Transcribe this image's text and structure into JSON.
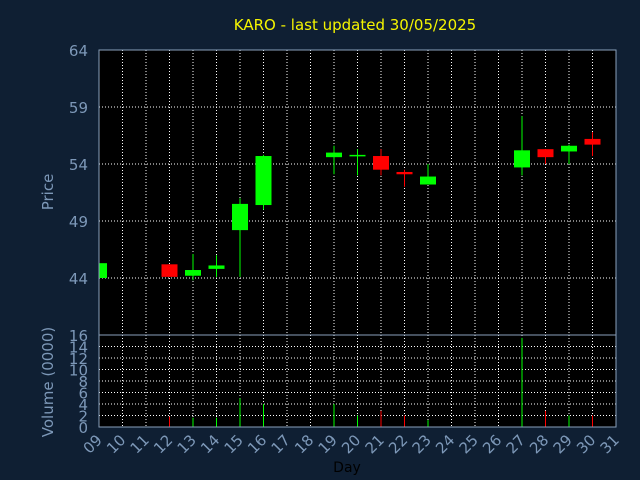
{
  "chart_data": {
    "type": "candlestick",
    "title": "KARO - last updated 30/05/2025",
    "xlabel": "Day",
    "price_panel": {
      "ylabel": "Price",
      "ylim": [
        39,
        64
      ],
      "yticks": [
        44,
        49,
        54,
        59,
        64
      ]
    },
    "volume_panel": {
      "ylabel": "Volume (0000)",
      "ylim": [
        0,
        16
      ],
      "yticks": [
        0,
        2,
        4,
        6,
        8,
        10,
        12,
        14,
        16
      ]
    },
    "x_ticks": [
      "09",
      "10",
      "11",
      "12",
      "13",
      "14",
      "15",
      "16",
      "17",
      "18",
      "19",
      "20",
      "21",
      "22",
      "23",
      "24",
      "25",
      "26",
      "27",
      "28",
      "29",
      "30",
      "31"
    ],
    "up_color": "#00ff00",
    "down_color": "#ff0000",
    "candles": [
      {
        "day": "09",
        "open": 44.0,
        "high": 45.3,
        "low": 44.0,
        "close": 45.3,
        "volume": 0.0
      },
      {
        "day": "12",
        "open": 45.2,
        "high": 45.2,
        "low": 44.1,
        "close": 44.1,
        "volume": 1.8
      },
      {
        "day": "13",
        "open": 44.2,
        "high": 46.1,
        "low": 43.8,
        "close": 44.7,
        "volume": 1.6
      },
      {
        "day": "14",
        "open": 44.8,
        "high": 46.0,
        "low": 44.1,
        "close": 45.1,
        "volume": 1.6
      },
      {
        "day": "15",
        "open": 48.2,
        "high": 51.0,
        "low": 44.1,
        "close": 50.5,
        "volume": 5.0
      },
      {
        "day": "16",
        "open": 50.4,
        "high": 54.8,
        "low": 50.0,
        "close": 54.7,
        "volume": 4.0
      },
      {
        "day": "19",
        "open": 54.6,
        "high": 55.6,
        "low": 53.1,
        "close": 55.0,
        "volume": 4.0
      },
      {
        "day": "20",
        "open": 54.7,
        "high": 55.3,
        "low": 53.0,
        "close": 54.8,
        "volume": 2.0
      },
      {
        "day": "21",
        "open": 54.7,
        "high": 55.3,
        "low": 53.0,
        "close": 53.5,
        "volume": 2.8
      },
      {
        "day": "22",
        "open": 53.3,
        "high": 53.5,
        "low": 52.0,
        "close": 53.1,
        "volume": 2.0
      },
      {
        "day": "23",
        "open": 52.2,
        "high": 54.0,
        "low": 52.2,
        "close": 52.9,
        "volume": 1.2
      },
      {
        "day": "27",
        "open": 53.7,
        "high": 58.2,
        "low": 53.0,
        "close": 55.2,
        "volume": 15.5
      },
      {
        "day": "28",
        "open": 55.3,
        "high": 55.3,
        "low": 54.0,
        "close": 54.6,
        "volume": 2.8
      },
      {
        "day": "29",
        "open": 55.1,
        "high": 55.7,
        "low": 54.0,
        "close": 55.6,
        "volume": 2.0
      },
      {
        "day": "30",
        "open": 56.2,
        "high": 56.8,
        "low": 54.7,
        "close": 55.7,
        "volume": 2.0
      }
    ]
  }
}
